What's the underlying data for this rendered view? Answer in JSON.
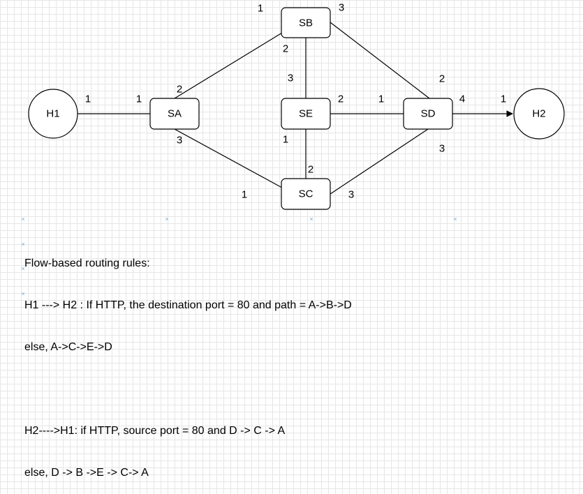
{
  "nodes": {
    "H1": "H1",
    "H2": "H2",
    "SA": "SA",
    "SB": "SB",
    "SC": "SC",
    "SD": "SD",
    "SE": "SE"
  },
  "ports": {
    "h1_sa_h1": "1",
    "h1_sa_sa": "1",
    "sa_sb_sa": "2",
    "sa_sb_sb": "1",
    "sa_sc_sa": "3",
    "sa_sc_sc": "1",
    "sb_sd_sb": "3",
    "sb_sd_sd": "2",
    "sb_se_sb": "2",
    "sb_se_se": "3",
    "se_sd_se": "2",
    "se_sd_sd": "1",
    "se_sc_se": "1",
    "se_sc_sc": "2",
    "sc_sd_sc": "3",
    "sc_sd_sd": "3",
    "sd_h2_sd": "4",
    "sd_h2_h2": "1"
  },
  "rules": {
    "heading": "Flow-based routing rules:",
    "line1": "H1 ---> H2 : If HTTP, the destination port = 80 and path = A->B->D",
    "line2": "else, A->C->E->D",
    "line3": "H2---->H1: if HTTP, source port = 80 and D -> C -> A",
    "line4": "else, D -> B ->E -> C-> A"
  }
}
